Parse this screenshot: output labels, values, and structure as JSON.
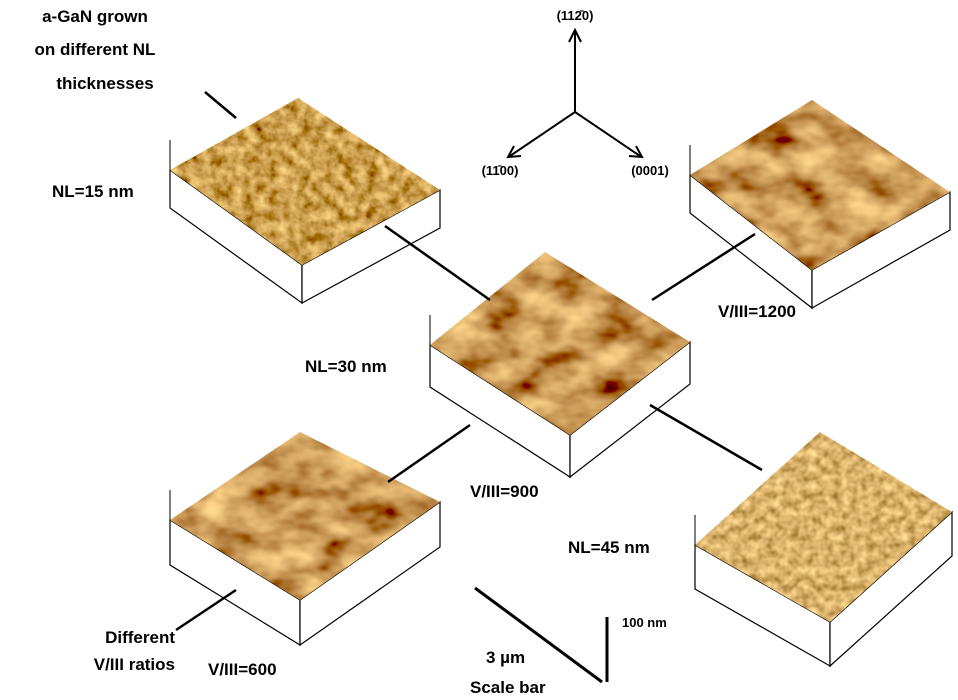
{
  "group_label": [
    "a-GaN grown",
    "on different NL",
    "thicknesses"
  ],
  "axes": {
    "up": "(112̄0)",
    "left": "(11̄00)",
    "right": "(0001)"
  },
  "panels": [
    {
      "label": "NL=15 nm"
    },
    {
      "label": "V/III=1200"
    },
    {
      "label": "NL=30 nm",
      "label2": "V/III=900"
    },
    {
      "label": "V/III=600"
    },
    {
      "label": "NL=45 nm"
    }
  ],
  "ratio_label": [
    "Different",
    "V/III ratios"
  ],
  "scale": {
    "lateral": "3 µm",
    "title": "Scale bar",
    "height": "100 nm"
  }
}
